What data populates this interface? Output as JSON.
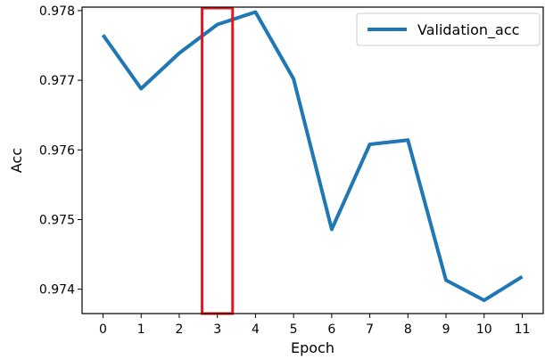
{
  "chart_data": {
    "type": "line",
    "title": "",
    "xlabel": "Epoch",
    "ylabel": "Acc",
    "x": [
      0,
      1,
      2,
      3,
      4,
      5,
      6,
      7,
      8,
      9,
      10,
      11
    ],
    "x_ticks": [
      "0",
      "1",
      "2",
      "3",
      "4",
      "5",
      "6",
      "7",
      "8",
      "9",
      "10",
      "11"
    ],
    "y_ticks": [
      "0.974",
      "0.975",
      "0.976",
      "0.977",
      "0.978"
    ],
    "y_tick_values": [
      0.974,
      0.975,
      0.976,
      0.977,
      0.978
    ],
    "xlim": [
      -0.55,
      11.55
    ],
    "ylim": [
      0.97365,
      0.97805
    ],
    "grid": false,
    "legend_position": "top-right",
    "series": [
      {
        "name": "Validation_acc",
        "color": "#1f77b4",
        "values": [
          0.97765,
          0.97688,
          0.97739,
          0.9778,
          0.97798,
          0.97702,
          0.97486,
          0.97608,
          0.97614,
          0.97413,
          0.97384,
          0.97418
        ]
      }
    ],
    "highlight": {
      "x_range": [
        2.6,
        3.4
      ],
      "color": "#e8141a"
    }
  }
}
